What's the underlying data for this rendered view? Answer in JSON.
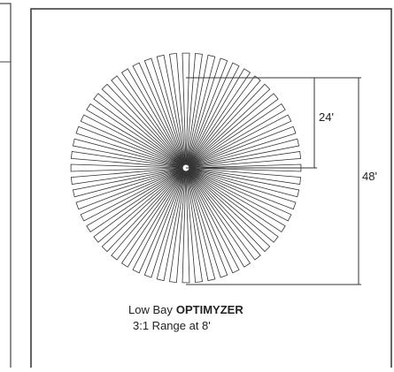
{
  "dimensions": {
    "radius": "24'",
    "diameter": "48'"
  },
  "caption": {
    "line1_prefix": "Low Bay",
    "line1_brand": "OPTIMYZER",
    "line2": "3:1 Range at 8'"
  }
}
